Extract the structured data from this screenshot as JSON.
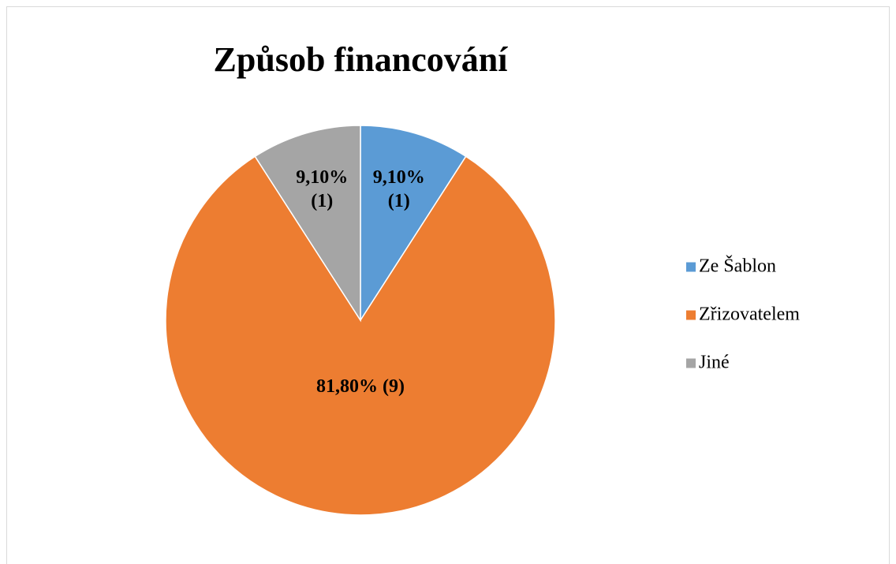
{
  "chart_data": {
    "type": "pie",
    "title": "Způsob financování",
    "categories": [
      "Ze Šablon",
      "Zřizovatelem",
      "Jiné"
    ],
    "values": [
      9.1,
      81.8,
      9.1
    ],
    "value_labels": [
      "9,10% (1)",
      "81,80% (9)",
      "9,10% (1)"
    ],
    "colors": [
      "#5b9bd5",
      "#ed7d31",
      "#a5a5a5"
    ],
    "legend": "right"
  }
}
